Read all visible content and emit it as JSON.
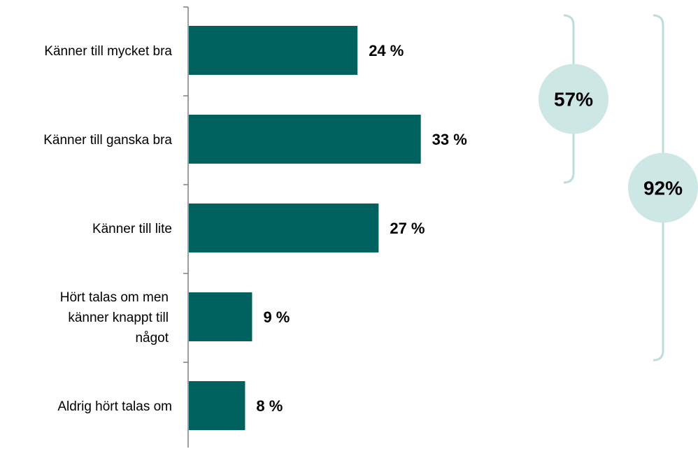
{
  "colors": {
    "bar": "#00625F",
    "axis": "#7F7F7F",
    "bracket": "#BEDDDB",
    "bubble": "#CDE7E5",
    "label": "#000000"
  },
  "chart_data": {
    "type": "bar",
    "orientation": "horizontal",
    "title": "",
    "xlabel": "",
    "ylabel": "",
    "xlim": [
      0,
      40
    ],
    "grid": false,
    "legend": "none",
    "categories": [
      [
        "Känner till mycket bra"
      ],
      [
        "Känner till ganska bra"
      ],
      [
        "Känner till lite"
      ],
      [
        "Hört talas om men",
        "känner knappt till",
        "något"
      ],
      [
        "Aldrig hört talas om"
      ]
    ],
    "values": [
      24,
      33,
      27,
      9,
      8
    ],
    "value_labels": [
      "24 %",
      "33 %",
      "27 %",
      "9 %",
      "8 %"
    ],
    "groups": [
      {
        "label": "57%",
        "from_category": 0,
        "to_category": 1,
        "value": 57
      },
      {
        "label": "92%",
        "from_category": 0,
        "to_category": 3,
        "value": 92
      }
    ]
  }
}
